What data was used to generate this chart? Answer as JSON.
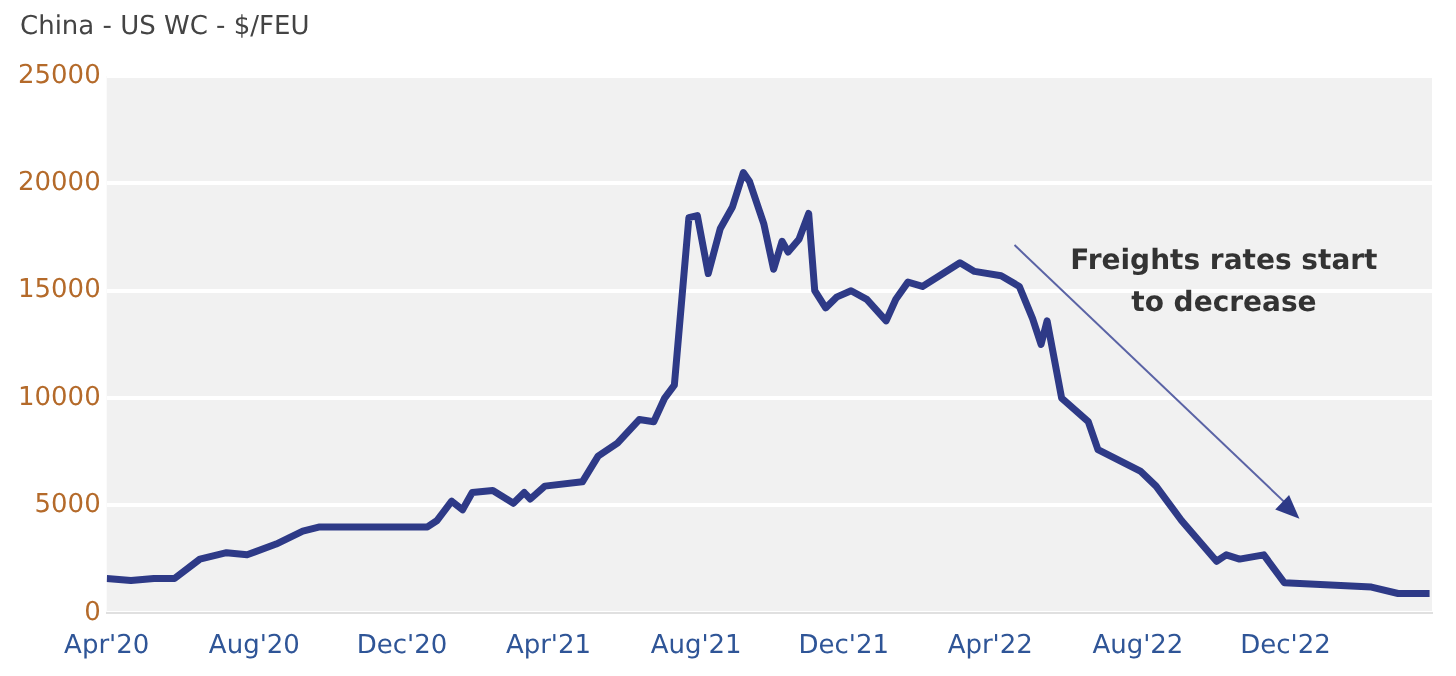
{
  "chart_data": {
    "type": "line",
    "title": "China - US WC - $/FEU",
    "x": [
      "2020-04-01",
      "2020-04-21",
      "2020-05-10",
      "2020-05-27",
      "2020-06-17",
      "2020-07-09",
      "2020-07-26",
      "2020-08-19",
      "2020-09-10",
      "2020-09-24",
      "2020-12-22",
      "2020-12-30",
      "2021-01-11",
      "2021-01-20",
      "2021-01-28",
      "2021-02-14",
      "2021-03-03",
      "2021-03-12",
      "2021-03-17",
      "2021-03-29",
      "2021-04-29",
      "2021-05-12",
      "2021-05-28",
      "2021-06-15",
      "2021-06-27",
      "2021-07-06",
      "2021-07-14",
      "2021-07-26",
      "2021-08-02",
      "2021-08-11",
      "2021-08-21",
      "2021-08-31",
      "2021-09-09",
      "2021-09-14",
      "2021-09-26",
      "2021-10-04",
      "2021-10-11",
      "2021-10-16",
      "2021-10-25",
      "2021-11-02",
      "2021-11-07",
      "2021-11-16",
      "2021-11-25",
      "2021-12-07",
      "2021-12-20",
      "2022-01-05",
      "2022-01-13",
      "2022-01-23",
      "2022-02-04",
      "2022-02-21",
      "2022-03-07",
      "2022-03-19",
      "2022-04-10",
      "2022-04-25",
      "2022-05-06",
      "2022-05-13",
      "2022-05-18",
      "2022-05-30",
      "2022-06-21",
      "2022-06-29",
      "2022-08-03",
      "2022-08-16",
      "2022-09-06",
      "2022-10-05",
      "2022-10-13",
      "2022-10-24",
      "2022-11-13",
      "2022-11-30",
      "2023-02-10",
      "2023-03-04",
      "2023-03-30"
    ],
    "series": [
      {
        "color": "#2e3a87",
        "values": [
          1600,
          1500,
          1600,
          1600,
          2500,
          2800,
          2700,
          3200,
          3800,
          4000,
          4000,
          4300,
          5200,
          4800,
          5600,
          5700,
          5100,
          5600,
          5300,
          5900,
          6100,
          7300,
          7900,
          9000,
          8900,
          10000,
          10600,
          18400,
          18500,
          15800,
          17900,
          18900,
          20500,
          20100,
          18100,
          16000,
          17300,
          16800,
          17400,
          18600,
          15000,
          14200,
          14700,
          15000,
          14600,
          13600,
          14600,
          15400,
          15200,
          15800,
          16300,
          15900,
          15700,
          15200,
          13700,
          12500,
          13600,
          10000,
          8900,
          7600,
          6600,
          5900,
          4300,
          2400,
          2700,
          2500,
          2700,
          1400,
          1200,
          900,
          900
        ]
      }
    ],
    "xlim": [
      "2020-04-01",
      "2023-04-01"
    ],
    "xticks": [
      {
        "value": "2020-04-01",
        "label": "Apr'20"
      },
      {
        "value": "2020-08-01",
        "label": "Aug'20"
      },
      {
        "value": "2020-12-01",
        "label": "Dec'20"
      },
      {
        "value": "2021-04-01",
        "label": "Apr'21"
      },
      {
        "value": "2021-08-01",
        "label": "Aug'21"
      },
      {
        "value": "2021-12-01",
        "label": "Dec'21"
      },
      {
        "value": "2022-04-01",
        "label": "Apr'22"
      },
      {
        "value": "2022-08-01",
        "label": "Aug'22"
      },
      {
        "value": "2022-12-01",
        "label": "Dec'22"
      }
    ],
    "ylim": [
      0,
      25000
    ],
    "yticks": [
      0,
      5000,
      10000,
      15000,
      20000,
      25000
    ],
    "grid": "y",
    "marker": "none",
    "line_style": "solid",
    "annotations": [
      "Freights rates start\nto decrease"
    ]
  }
}
